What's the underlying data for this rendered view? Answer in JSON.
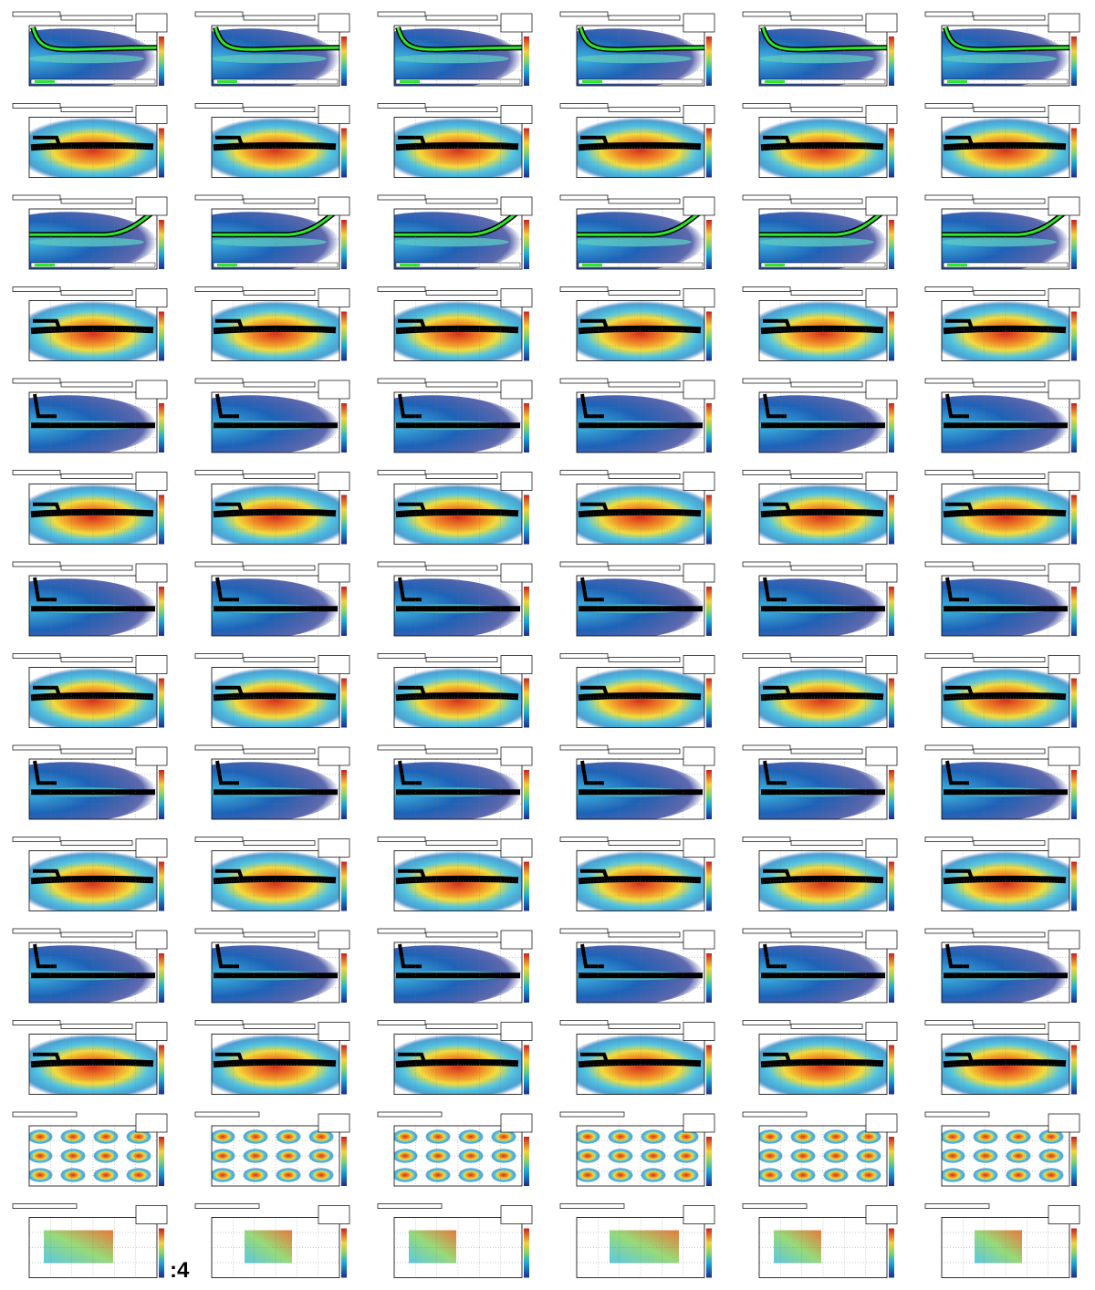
{
  "overlay_text": ":4"
}
